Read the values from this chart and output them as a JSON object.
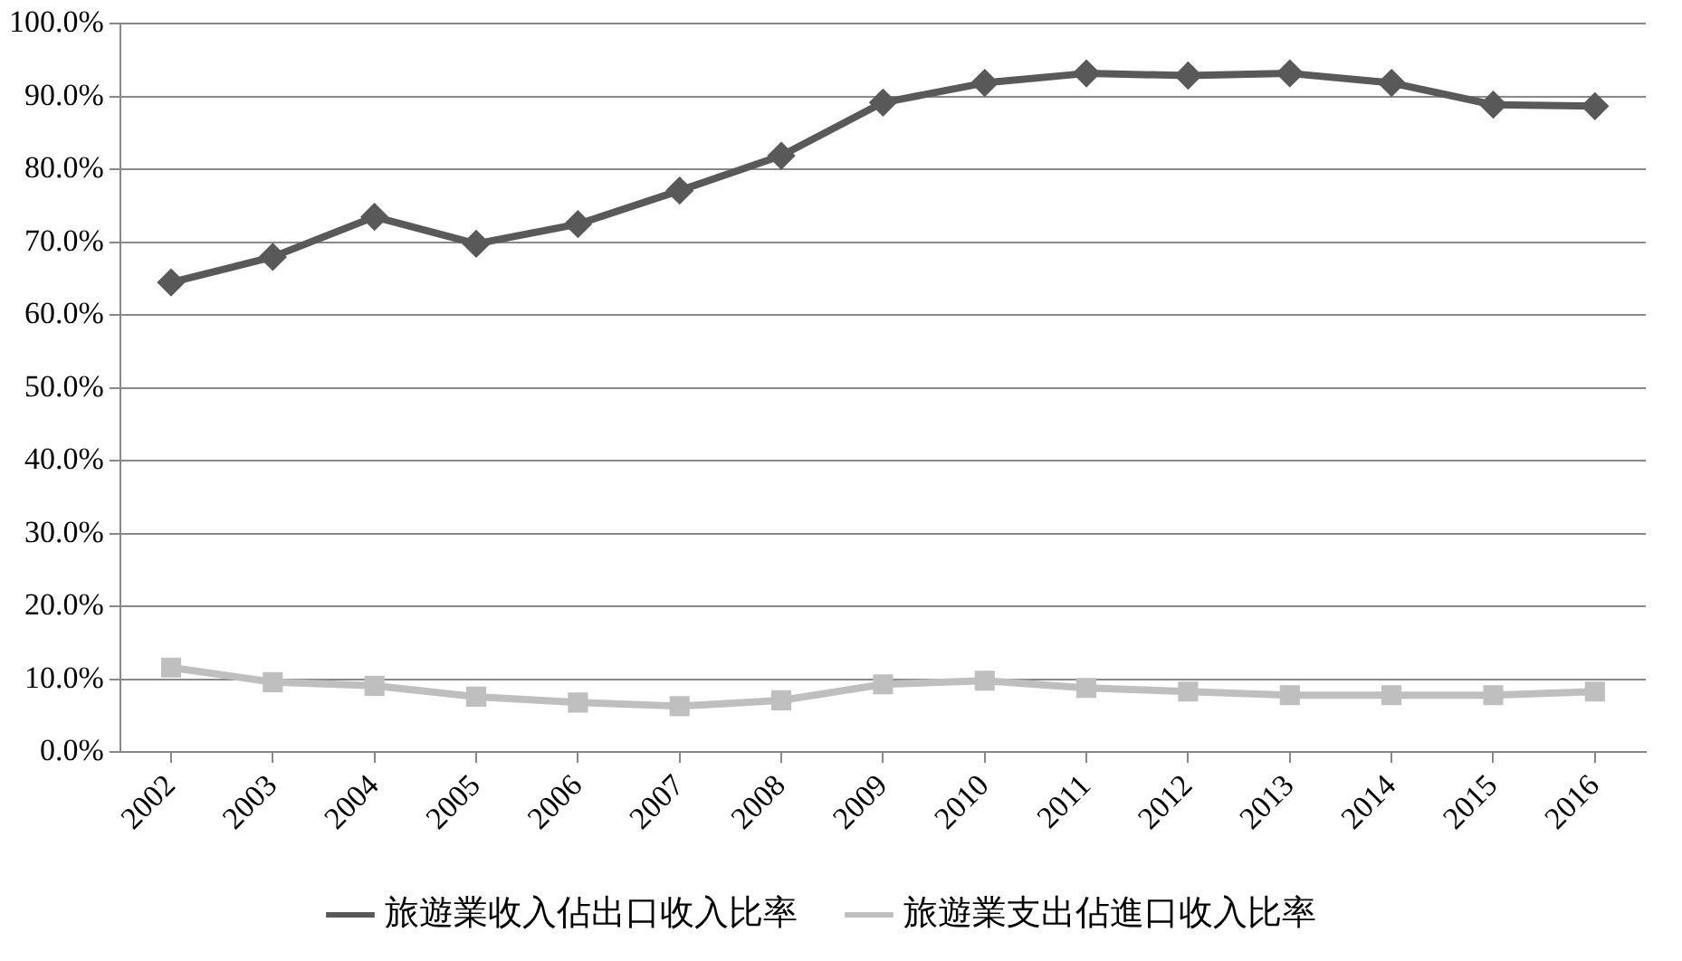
{
  "chart_data": {
    "type": "line",
    "categories": [
      "2002",
      "2003",
      "2004",
      "2005",
      "2006",
      "2007",
      "2008",
      "2009",
      "2010",
      "2011",
      "2012",
      "2013",
      "2014",
      "2015",
      "2016"
    ],
    "series": [
      {
        "name": "旅遊業收入佔出口收入比率",
        "color": "#595959",
        "marker": "diamond",
        "values": [
          64.5,
          68.0,
          73.5,
          69.8,
          72.5,
          77.1,
          81.9,
          89.2,
          91.9,
          93.2,
          92.9,
          93.2,
          91.9,
          88.9,
          88.7
        ]
      },
      {
        "name": "旅遊業支出佔進口收入比率",
        "color": "#bfbfbf",
        "marker": "square",
        "values": [
          11.6,
          9.6,
          9.1,
          7.6,
          6.8,
          6.3,
          7.1,
          9.3,
          9.8,
          8.8,
          8.3,
          7.8,
          7.8,
          7.8,
          8.3
        ]
      }
    ],
    "ylim": [
      0,
      100
    ],
    "yticks": [
      {
        "value": 0,
        "label": "0.0%"
      },
      {
        "value": 10,
        "label": "10.0%"
      },
      {
        "value": 20,
        "label": "20.0%"
      },
      {
        "value": 30,
        "label": "30.0%"
      },
      {
        "value": 40,
        "label": "40.0%"
      },
      {
        "value": 50,
        "label": "50.0%"
      },
      {
        "value": 60,
        "label": "60.0%"
      },
      {
        "value": 70,
        "label": "70.0%"
      },
      {
        "value": 80,
        "label": "80.0%"
      },
      {
        "value": 90,
        "label": "90.0%"
      },
      {
        "value": 100,
        "label": "100.0%"
      }
    ],
    "grid": "y",
    "legend": "bottom",
    "line_style": "solid"
  }
}
